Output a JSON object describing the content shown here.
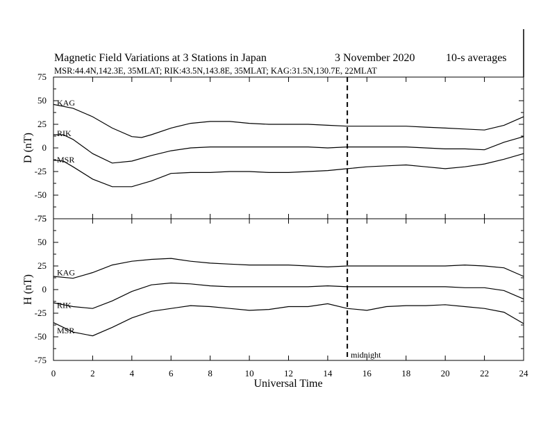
{
  "chart_data": {
    "type": "line",
    "title": "Magnetic Field Variations at 3 Stations in Japan",
    "date": "3   November 2020",
    "averaging": "10-s averages",
    "subtitle": "MSR:44.4N,142.3E, 35MLAT;  RIK:43.5N,143.8E, 35MLAT;  KAG:31.5N,130.7E, 22MLAT",
    "xlabel": "Universal Time",
    "xlim": [
      0,
      24
    ],
    "xticks": [
      0,
      2,
      4,
      6,
      8,
      10,
      12,
      14,
      16,
      18,
      20,
      22,
      24
    ],
    "annotation": {
      "text": "midnight",
      "x": 15
    },
    "panels": [
      {
        "ylabel": "D (nT)",
        "ylim": [
          -75,
          75
        ],
        "yticks": [
          75,
          50,
          25,
          0,
          -25,
          -50,
          -75
        ],
        "series": [
          {
            "name": "KAG",
            "x": [
              0,
              1,
              2,
              3,
              4,
              4.5,
              5,
              6,
              7,
              8,
              9,
              10,
              11,
              12,
              13,
              14,
              15,
              16,
              17,
              18,
              19,
              20,
              21,
              22,
              23,
              24
            ],
            "values": [
              46,
              42,
              33,
              21,
              12,
              11,
              14,
              21,
              26,
              28,
              28,
              26,
              25,
              25,
              25,
              24,
              23,
              23,
              23,
              23,
              22,
              21,
              20,
              19,
              24,
              33
            ]
          },
          {
            "name": "RIK",
            "x": [
              0,
              0.5,
              1,
              2,
              3,
              4,
              5,
              6,
              7,
              8,
              9,
              10,
              11,
              12,
              13,
              14,
              15,
              16,
              17,
              18,
              19,
              20,
              21,
              22,
              23,
              24
            ],
            "values": [
              14,
              14,
              9,
              -6,
              -16,
              -14,
              -8,
              -3,
              0,
              1,
              1,
              1,
              1,
              1,
              1,
              0,
              1,
              1,
              1,
              1,
              0,
              -1,
              -1,
              -2,
              6,
              12
            ]
          },
          {
            "name": "MSR",
            "x": [
              0,
              0.5,
              1,
              2,
              3,
              4,
              5,
              6,
              7,
              8,
              9,
              10,
              11,
              12,
              13,
              14,
              15,
              16,
              17,
              18,
              19,
              20,
              21,
              22,
              23,
              24
            ],
            "values": [
              -13,
              -14,
              -20,
              -33,
              -41,
              -41,
              -35,
              -27,
              -26,
              -26,
              -25,
              -25,
              -26,
              -26,
              -25,
              -24,
              -22,
              -20,
              -19,
              -18,
              -20,
              -22,
              -20,
              -17,
              -12,
              -6
            ]
          }
        ]
      },
      {
        "ylabel": "H (nT)",
        "ylim": [
          -75,
          75
        ],
        "yticks": [
          75,
          50,
          25,
          0,
          -25,
          -50,
          -75
        ],
        "series": [
          {
            "name": "KAG",
            "x": [
              0,
              1,
              2,
              3,
              4,
              5,
              6,
              7,
              8,
              9,
              10,
              11,
              12,
              13,
              14,
              15,
              16,
              17,
              18,
              19,
              20,
              21,
              22,
              23,
              24
            ],
            "values": [
              14,
              12,
              18,
              26,
              30,
              32,
              33,
              30,
              28,
              27,
              26,
              26,
              26,
              25,
              24,
              25,
              25,
              25,
              25,
              25,
              25,
              26,
              25,
              23,
              14
            ]
          },
          {
            "name": "RIK",
            "x": [
              0,
              1,
              2,
              3,
              4,
              5,
              6,
              7,
              8,
              9,
              10,
              11,
              12,
              13,
              14,
              15,
              16,
              17,
              18,
              19,
              20,
              21,
              22,
              23,
              24
            ],
            "values": [
              -14,
              -18,
              -20,
              -12,
              -2,
              5,
              7,
              6,
              4,
              3,
              3,
              3,
              3,
              3,
              4,
              3,
              3,
              3,
              3,
              3,
              3,
              2,
              2,
              -1,
              -10
            ]
          },
          {
            "name": "MSR",
            "x": [
              0,
              1,
              2,
              3,
              4,
              5,
              6,
              7,
              8,
              9,
              10,
              11,
              12,
              13,
              14,
              15,
              16,
              17,
              18,
              19,
              20,
              21,
              22,
              23,
              24
            ],
            "values": [
              -35,
              -45,
              -49,
              -40,
              -30,
              -23,
              -20,
              -17,
              -18,
              -20,
              -22,
              -21,
              -18,
              -18,
              -15,
              -20,
              -22,
              -18,
              -17,
              -17,
              -16,
              -18,
              -20,
              -24,
              -36
            ]
          }
        ]
      }
    ]
  }
}
